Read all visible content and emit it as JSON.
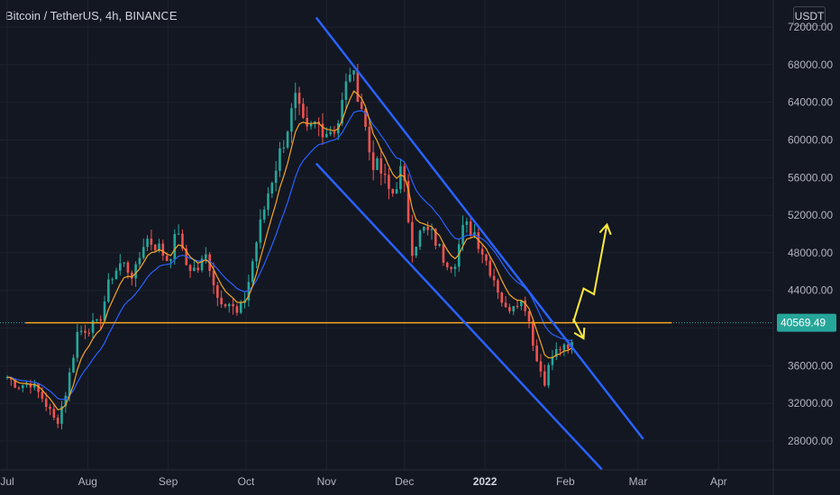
{
  "header": {
    "title": "Bitcoin / TetherUS, 4h, BINANCE",
    "currency": "USDT"
  },
  "chart_data": {
    "type": "candlestick",
    "symbol": "Bitcoin / TetherUS",
    "interval": "4h",
    "exchange": "BINANCE",
    "y_axis": {
      "ticks": [
        "28000.00",
        "32000.00",
        "36000.00",
        "40000.00",
        "44000.00",
        "48000.00",
        "52000.00",
        "56000.00",
        "60000.00",
        "64000.00",
        "68000.00",
        "72000.00"
      ],
      "range": [
        25000,
        73500
      ]
    },
    "x_axis": {
      "ticks": [
        "Jul",
        "Aug",
        "Sep",
        "Oct",
        "Nov",
        "Dec",
        "2022",
        "Feb",
        "Mar",
        "Apr"
      ],
      "bold_ticks": [
        "2022"
      ],
      "tick_dates": [
        "2021-07-01",
        "2021-08-01",
        "2021-09-01",
        "2021-10-01",
        "2021-11-01",
        "2021-12-01",
        "2022-01-01",
        "2022-02-01",
        "2022-03-01",
        "2022-04-01"
      ]
    },
    "current_price": {
      "label": "40569.49",
      "value": 40569.49
    },
    "horizontal_line": {
      "value": 40569.49,
      "color": "#f5a623"
    },
    "price_path": [
      [
        "2021-07-01",
        34800
      ],
      [
        "2021-07-05",
        33900
      ],
      [
        "2021-07-10",
        34200
      ],
      [
        "2021-07-15",
        32400
      ],
      [
        "2021-07-20",
        29800
      ],
      [
        "2021-07-24",
        33600
      ],
      [
        "2021-07-28",
        39500
      ],
      [
        "2021-08-01",
        40100
      ],
      [
        "2021-08-05",
        40300
      ],
      [
        "2021-08-10",
        45500
      ],
      [
        "2021-08-14",
        47000
      ],
      [
        "2021-08-19",
        45500
      ],
      [
        "2021-08-23",
        49600
      ],
      [
        "2021-08-28",
        48700
      ],
      [
        "2021-09-01",
        47200
      ],
      [
        "2021-09-05",
        50500
      ],
      [
        "2021-09-07",
        46900
      ],
      [
        "2021-09-12",
        46100
      ],
      [
        "2021-09-16",
        47800
      ],
      [
        "2021-09-20",
        43300
      ],
      [
        "2021-09-24",
        42900
      ],
      [
        "2021-09-28",
        41200
      ],
      [
        "2021-10-01",
        43600
      ],
      [
        "2021-10-05",
        49200
      ],
      [
        "2021-10-10",
        55000
      ],
      [
        "2021-10-15",
        59500
      ],
      [
        "2021-10-20",
        64200
      ],
      [
        "2021-10-24",
        60500
      ],
      [
        "2021-10-28",
        61800
      ],
      [
        "2021-11-01",
        61000
      ],
      [
        "2021-11-05",
        61400
      ],
      [
        "2021-11-10",
        67500
      ],
      [
        "2021-11-14",
        64400
      ],
      [
        "2021-11-18",
        58000
      ],
      [
        "2021-11-22",
        56500
      ],
      [
        "2021-11-26",
        54000
      ],
      [
        "2021-11-30",
        57000
      ],
      [
        "2021-12-04",
        48500
      ],
      [
        "2021-12-08",
        50500
      ],
      [
        "2021-12-12",
        49800
      ],
      [
        "2021-12-16",
        47500
      ],
      [
        "2021-12-20",
        46800
      ],
      [
        "2021-12-24",
        50900
      ],
      [
        "2021-12-28",
        50200
      ],
      [
        "2022-01-01",
        47500
      ],
      [
        "2022-01-05",
        45000
      ],
      [
        "2022-01-09",
        41800
      ],
      [
        "2022-01-13",
        43200
      ],
      [
        "2022-01-17",
        42300
      ],
      [
        "2022-01-21",
        36500
      ],
      [
        "2022-01-24",
        34500
      ],
      [
        "2022-01-27",
        37000
      ],
      [
        "2022-01-30",
        37900
      ],
      [
        "2022-02-02",
        37500
      ],
      [
        "2022-02-04",
        38600
      ]
    ],
    "ema_fast_color": "#f5a623",
    "ema_slow_color": "#2962ff",
    "channel_lines": [
      {
        "from": [
          "2021-10-28",
          73000
        ],
        "to": [
          "2022-03-03",
          28200
        ]
      },
      {
        "from": [
          "2021-10-28",
          57500
        ],
        "to": [
          "2022-02-15",
          25000
        ]
      }
    ],
    "channel_color": "#2962ff",
    "projection_arrows": [
      {
        "points": [
          [
            "2022-02-04",
            40600
          ],
          [
            "2022-02-08",
            44200
          ],
          [
            "2022-02-12",
            43600
          ],
          [
            "2022-02-17",
            51000
          ]
        ],
        "direction": "up"
      },
      {
        "points": [
          [
            "2022-02-04",
            41000
          ],
          [
            "2022-02-08",
            38900
          ]
        ],
        "direction": "down"
      }
    ],
    "projection_color": "#ffeb3b"
  }
}
